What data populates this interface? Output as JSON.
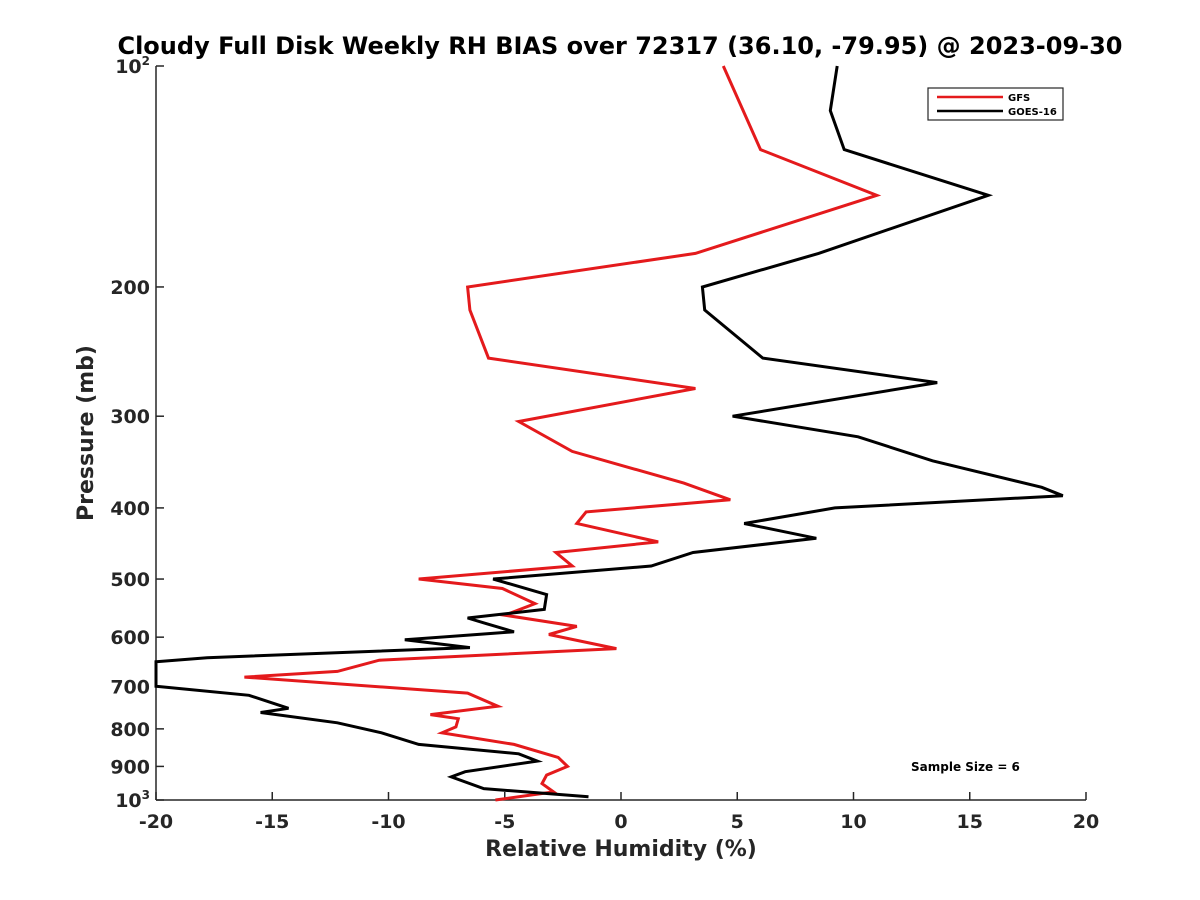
{
  "chart_data": {
    "type": "line",
    "title": "Cloudy Full Disk Weekly RH BIAS over 72317 (36.10, -79.95) @ 2023-09-30",
    "xlabel": "Relative Humidity (%)",
    "ylabel": "Pressure (mb)",
    "xlim": [
      -20,
      20
    ],
    "ylim": [
      100,
      1000
    ],
    "yscale": "log",
    "y_reversed": true,
    "x_ticks": [
      "-20",
      "-15",
      "-10",
      "-5",
      "0",
      "5",
      "10",
      "15",
      "20"
    ],
    "y_ticks": [
      {
        "value": 100,
        "base": "10",
        "exp": "2"
      },
      {
        "value": 200,
        "label": "200"
      },
      {
        "value": 300,
        "label": "300"
      },
      {
        "value": 400,
        "label": "400"
      },
      {
        "value": 500,
        "label": "500"
      },
      {
        "value": 600,
        "label": "600"
      },
      {
        "value": 700,
        "label": "700"
      },
      {
        "value": 800,
        "label": "800"
      },
      {
        "value": 900,
        "label": "900"
      },
      {
        "value": 1000,
        "base": "10",
        "exp": "3"
      }
    ],
    "legend_position": "top-right",
    "grid": false,
    "annotation": "Sample Size = 6",
    "series": [
      {
        "name": "GFS",
        "color": "#e41a1c",
        "points": [
          [
            4.4,
            100
          ],
          [
            6.0,
            130
          ],
          [
            11.0,
            150
          ],
          [
            3.2,
            180
          ],
          [
            -6.6,
            200
          ],
          [
            -6.5,
            215
          ],
          [
            -5.7,
            250
          ],
          [
            3.2,
            275
          ],
          [
            -4.4,
            305
          ],
          [
            -2.1,
            335
          ],
          [
            2.7,
            370
          ],
          [
            4.7,
            390
          ],
          [
            -1.5,
            405
          ],
          [
            -1.9,
            420
          ],
          [
            1.6,
            445
          ],
          [
            -2.8,
            460
          ],
          [
            -2.1,
            480
          ],
          [
            -8.7,
            500
          ],
          [
            -5.1,
            515
          ],
          [
            -3.7,
            540
          ],
          [
            -5.0,
            560
          ],
          [
            -1.9,
            580
          ],
          [
            -3.1,
            595
          ],
          [
            -0.2,
            622
          ],
          [
            -10.4,
            645
          ],
          [
            -12.2,
            668
          ],
          [
            -16.2,
            680
          ],
          [
            -6.6,
            715
          ],
          [
            -5.3,
            745
          ],
          [
            -8.2,
            765
          ],
          [
            -7.0,
            775
          ],
          [
            -7.1,
            795
          ],
          [
            -7.7,
            810
          ],
          [
            -4.6,
            840
          ],
          [
            -2.7,
            875
          ],
          [
            -2.3,
            900
          ],
          [
            -3.2,
            925
          ],
          [
            -3.4,
            950
          ],
          [
            -2.9,
            975
          ],
          [
            -5.4,
            1000
          ]
        ]
      },
      {
        "name": "GOES-16",
        "color": "#000000",
        "points": [
          [
            9.3,
            100
          ],
          [
            9.0,
            115
          ],
          [
            9.6,
            130
          ],
          [
            15.8,
            150
          ],
          [
            8.5,
            180
          ],
          [
            3.5,
            200
          ],
          [
            3.6,
            215
          ],
          [
            6.1,
            250
          ],
          [
            13.6,
            270
          ],
          [
            4.8,
            300
          ],
          [
            10.2,
            320
          ],
          [
            13.4,
            345
          ],
          [
            18.1,
            375
          ],
          [
            19.0,
            385
          ],
          [
            9.2,
            400
          ],
          [
            5.3,
            420
          ],
          [
            8.4,
            440
          ],
          [
            3.1,
            460
          ],
          [
            1.3,
            480
          ],
          [
            -5.5,
            500
          ],
          [
            -3.2,
            525
          ],
          [
            -3.3,
            550
          ],
          [
            -6.6,
            565
          ],
          [
            -5.8,
            575
          ],
          [
            -4.6,
            590
          ],
          [
            -9.3,
            605
          ],
          [
            -6.5,
            620
          ],
          [
            -17.8,
            640
          ],
          [
            -20.0,
            648
          ],
          [
            -20.0,
            700
          ],
          [
            -16.0,
            720
          ],
          [
            -14.3,
            750
          ],
          [
            -15.5,
            760
          ],
          [
            -12.2,
            785
          ],
          [
            -10.3,
            810
          ],
          [
            -8.7,
            840
          ],
          [
            -4.4,
            865
          ],
          [
            -3.6,
            885
          ],
          [
            -6.7,
            915
          ],
          [
            -7.3,
            930
          ],
          [
            -5.9,
            965
          ],
          [
            -1.4,
            990
          ]
        ]
      }
    ]
  }
}
